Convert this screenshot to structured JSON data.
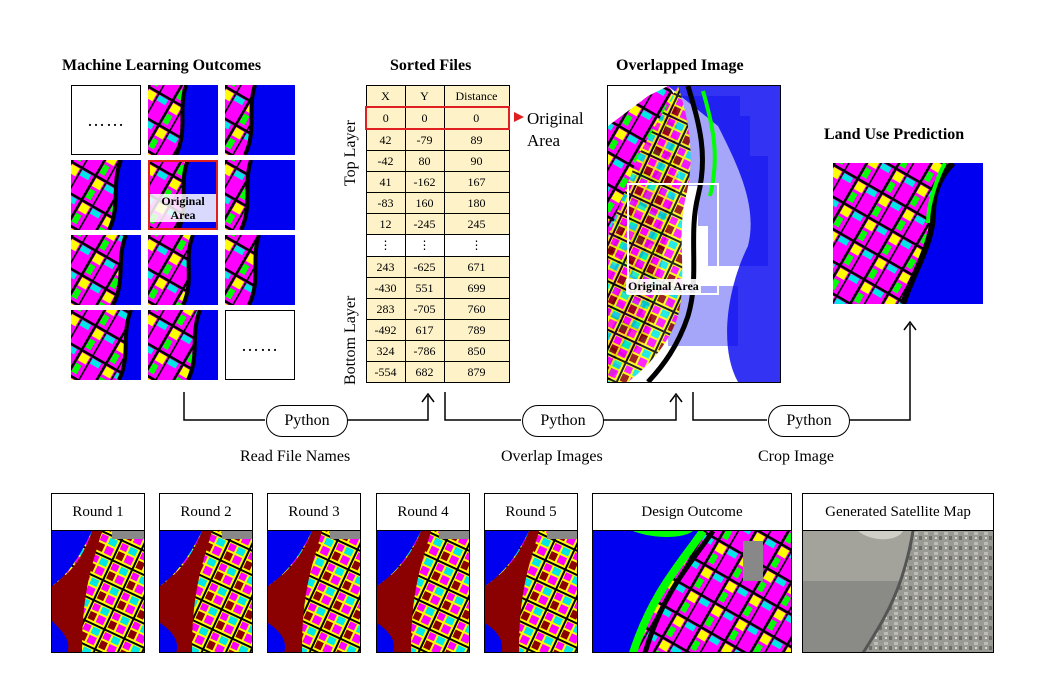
{
  "headings": {
    "ml_outcomes": "Machine Learning Outcomes",
    "sorted_files": "Sorted Files",
    "overlapped": "Overlapped Image",
    "prediction": "Land Use Prediction"
  },
  "grid": {
    "dots": "……",
    "original_label_line1": "Original",
    "original_label_line2": "Area"
  },
  "table": {
    "headers": [
      "X",
      "Y",
      "Distance"
    ],
    "top_rows": [
      [
        "0",
        "0",
        "0"
      ],
      [
        "42",
        "-79",
        "89"
      ],
      [
        "-42",
        "80",
        "90"
      ],
      [
        "41",
        "-162",
        "167"
      ],
      [
        "-83",
        "160",
        "180"
      ],
      [
        "12",
        "-245",
        "245"
      ]
    ],
    "ellipsis": [
      "⋮",
      "⋮",
      "⋮"
    ],
    "bottom_rows": [
      [
        "243",
        "-625",
        "671"
      ],
      [
        "-430",
        "551",
        "699"
      ],
      [
        "283",
        "-705",
        "760"
      ],
      [
        "-492",
        "617",
        "789"
      ],
      [
        "324",
        "-786",
        "850"
      ],
      [
        "-554",
        "682",
        "879"
      ]
    ],
    "top_layer": "Top Layer",
    "bottom_layer": "Bottom Layer",
    "original_area_line1": "Original",
    "original_area_line2": "Area"
  },
  "overlap": {
    "original_area": "Original Area"
  },
  "pipeline": {
    "python": "Python",
    "steps": [
      "Read File Names",
      "Overlap Images",
      "Crop Image"
    ]
  },
  "rounds": [
    "Round 1",
    "Round 2",
    "Round 3",
    "Round 4",
    "Round 5",
    "Design Outcome",
    "Generated Satellite Map"
  ],
  "colors": {
    "water": "#0000f0",
    "residential": "#ff00ff",
    "commercial": "#ffff00",
    "green": "#00ff00",
    "cyan": "#00e5e5",
    "road": "#000000",
    "industrial": "#8b0000",
    "gray": "#888888",
    "table_fill": "#fdf2c8",
    "highlight": "#e02020"
  }
}
